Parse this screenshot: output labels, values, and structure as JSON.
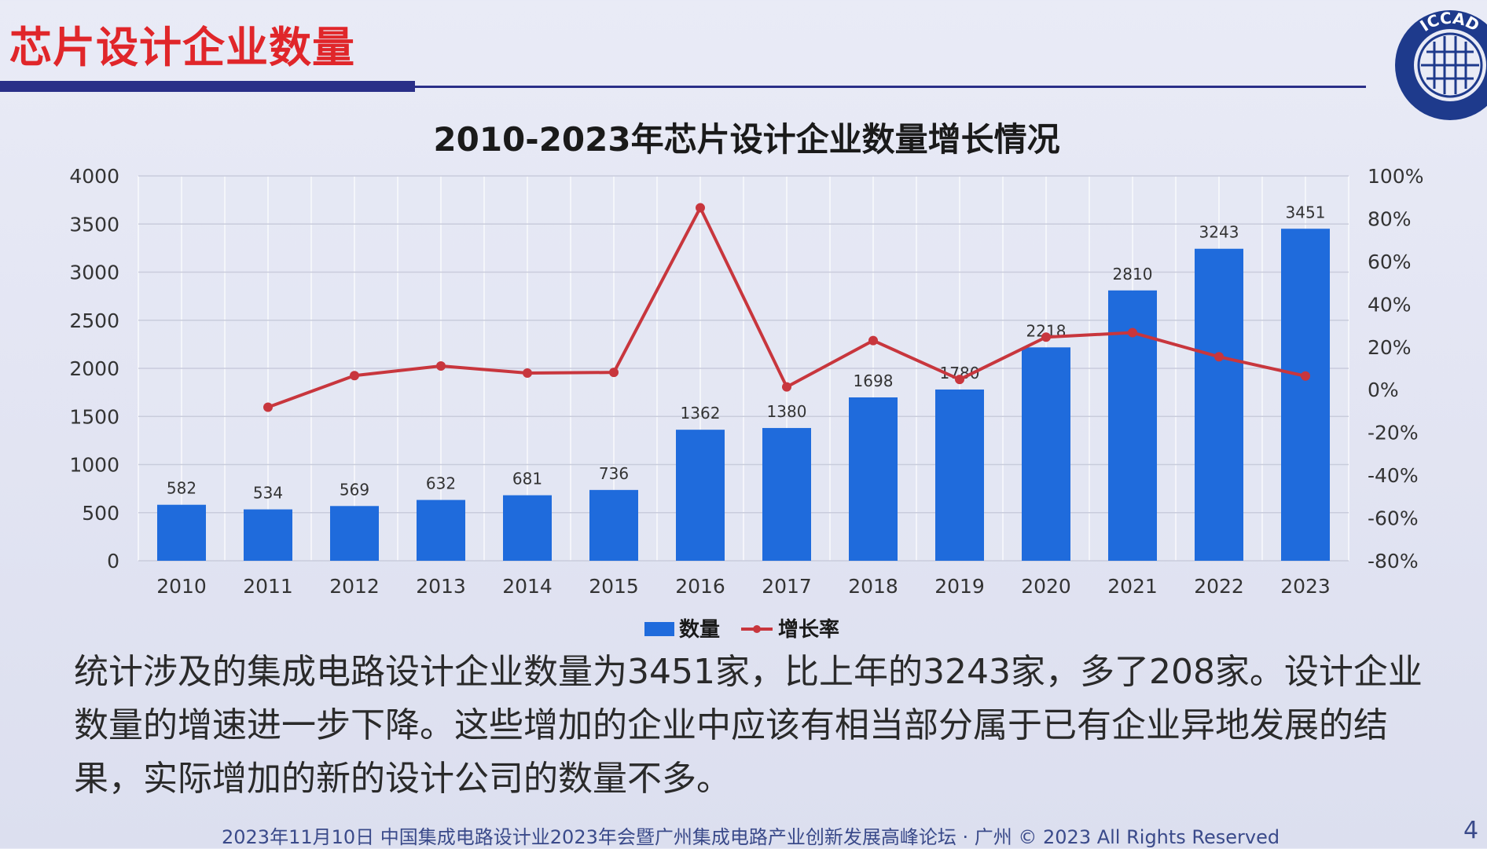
{
  "slide": {
    "title": "芯片设计企业数量",
    "logo_text": "ICCAD",
    "body": "统计涉及的集成电路设计企业数量为3451家，比上年的3243家，多了208家。设计企业数量的增速进一步下降。这些增加的企业中应该有相当部分属于已有企业异地发展的结果，实际增加的新的设计公司的数量不多。",
    "footer": "2023年11月10日 中国集成电路设计业2023年会暨广州集成电路产业创新发展高峰论坛 · 广州 © 2023 All Rights Reserved",
    "page_number": "4"
  },
  "colors": {
    "title_red": "#e0262a",
    "bar_blue": "#1f6bdc",
    "line_red": "#c8363d",
    "rule_navy": "#2a2f88"
  },
  "chart_data": {
    "type": "bar",
    "title": "2010-2023年芯片设计企业数量增长情况",
    "categories": [
      "2010",
      "2011",
      "2012",
      "2013",
      "2014",
      "2015",
      "2016",
      "2017",
      "2018",
      "2019",
      "2020",
      "2021",
      "2022",
      "2023"
    ],
    "series": [
      {
        "name": "数量",
        "type": "bar",
        "axis": "left",
        "values": [
          582,
          534,
          569,
          632,
          681,
          736,
          1362,
          1380,
          1698,
          1780,
          2218,
          2810,
          3243,
          3451
        ],
        "data_labels": [
          "582",
          "534",
          "569",
          "632",
          "681",
          "736",
          "1362",
          "1380",
          "1698",
          "1780",
          "2218",
          "2810",
          "3243",
          "3451"
        ]
      },
      {
        "name": "增长率",
        "type": "line",
        "axis": "right",
        "values": [
          null,
          -8.2,
          6.6,
          11.1,
          7.8,
          8.1,
          85.1,
          1.3,
          23.0,
          4.8,
          24.6,
          26.7,
          15.4,
          6.4
        ]
      }
    ],
    "ylim_left": [
      0,
      4000
    ],
    "yticks_left": [
      "0",
      "500",
      "1000",
      "1500",
      "2000",
      "2500",
      "3000",
      "3500",
      "4000"
    ],
    "ylim_right": [
      -80,
      100
    ],
    "yticks_right": [
      "-80%",
      "-60%",
      "-40%",
      "-20%",
      "0%",
      "20%",
      "40%",
      "60%",
      "80%",
      "100%"
    ],
    "grid": true,
    "legend_position": "bottom"
  }
}
